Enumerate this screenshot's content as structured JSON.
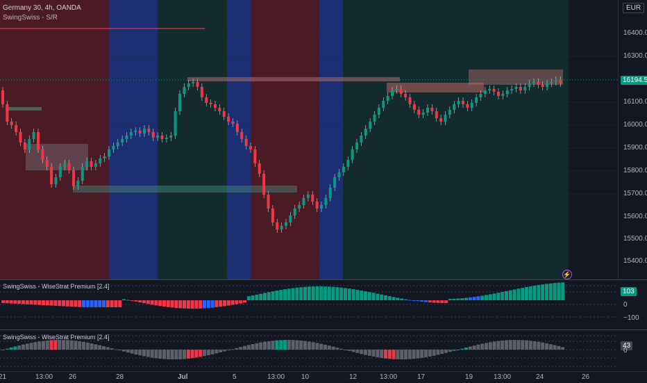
{
  "header": {
    "symbol_line": "Germany 30, 4h, OANDA",
    "indicator_line": "SwingSwiss - S/R",
    "currency_label": "EUR"
  },
  "price_axis": {
    "ticks": [
      "16400.0",
      "16300.0",
      "16200.0",
      "16100.0",
      "16000.0",
      "15900.0",
      "15800.0",
      "15700.0",
      "15600.0",
      "15500.0",
      "15400.0"
    ],
    "last_price": "16194.5",
    "last_price_color": "#089981"
  },
  "panes": {
    "osc1": {
      "title": "SwingSwiss - WiseStrat Premium [2.4]",
      "value": "103",
      "ticks": [
        "100",
        "0",
        "−100"
      ]
    },
    "osc2": {
      "title": "SwingSwiss - WiseStrat Premium [2.4]",
      "value": "43",
      "ticks": [
        "0"
      ]
    }
  },
  "time_axis": {
    "labels": [
      "21",
      "13:00",
      "26",
      "28",
      "Jul",
      "5",
      "13:00",
      "10",
      "12",
      "13:00",
      "17",
      "19",
      "13:00",
      "24",
      "26"
    ]
  },
  "colors": {
    "bull": "#089981",
    "bear": "#f23645",
    "blue": "#2962ff",
    "gray": "#5d606b",
    "zone_red": "rgba(242,54,69,0.20)",
    "zone_blue": "rgba(41,98,255,0.35)",
    "zone_green": "rgba(8,153,129,0.12)"
  },
  "icons": {
    "alert": "lightning-icon"
  }
}
